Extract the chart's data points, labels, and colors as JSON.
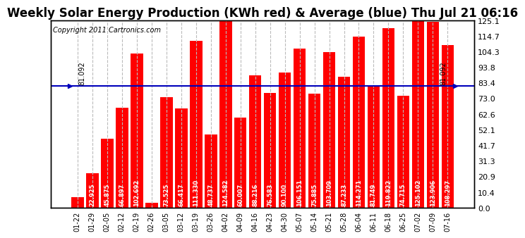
{
  "title": "Weekly Solar Energy Production (KWh red) & Average (blue) Thu Jul 21 06:16",
  "copyright": "Copyright 2011 Cartronics.com",
  "categories": [
    "01-22",
    "01-29",
    "02-05",
    "02-12",
    "02-19",
    "02-26",
    "03-05",
    "03-12",
    "03-19",
    "03-26",
    "04-02",
    "04-09",
    "04-16",
    "04-23",
    "04-30",
    "05-07",
    "05-14",
    "05-21",
    "05-28",
    "06-04",
    "06-11",
    "06-18",
    "06-25",
    "07-02",
    "07-09",
    "07-16"
  ],
  "values": [
    7.009,
    22.925,
    45.875,
    66.897,
    102.692,
    3.152,
    73.525,
    66.417,
    111.33,
    48.737,
    124.582,
    60.007,
    88.216,
    76.583,
    90.1,
    106.151,
    75.885,
    103.709,
    87.233,
    114.271,
    81.749,
    119.822,
    74.715,
    125.102,
    123.906,
    108.297
  ],
  "average": 81.092,
  "bar_color": "#ff0000",
  "average_color": "#0000bb",
  "background_color": "#ffffff",
  "plot_bg_color": "#ffffff",
  "grid_color": "#bbbbbb",
  "title_fontsize": 12,
  "copyright_fontsize": 7,
  "bar_label_fontsize": 6,
  "tick_fontsize": 8,
  "ylim": [
    0,
    125.1
  ],
  "yticks_left": [],
  "yticks_right": [
    0.0,
    10.4,
    20.9,
    31.3,
    41.7,
    52.1,
    62.6,
    73.0,
    83.4,
    93.8,
    104.3,
    114.7,
    125.1
  ],
  "avg_label": "81.092"
}
